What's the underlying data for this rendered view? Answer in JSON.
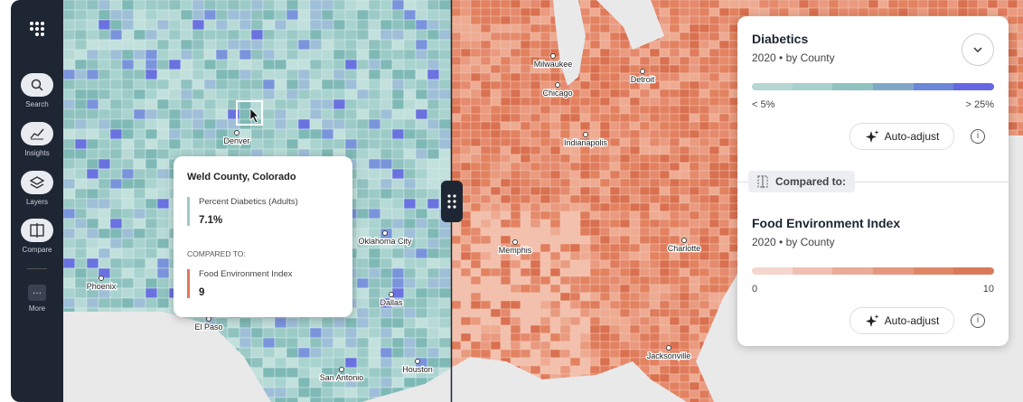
{
  "sidebar": {
    "items": [
      {
        "label": "Search"
      },
      {
        "label": "Insights"
      },
      {
        "label": "Layers"
      },
      {
        "label": "Compare"
      },
      {
        "label": "More"
      }
    ]
  },
  "map": {
    "cities": [
      {
        "name": "Denver"
      },
      {
        "name": "Phoenix"
      },
      {
        "name": "El Paso"
      },
      {
        "name": "Oklahoma City"
      },
      {
        "name": "Dallas"
      },
      {
        "name": "San Antonio"
      },
      {
        "name": "Houston"
      },
      {
        "name": "Milwaukee"
      },
      {
        "name": "Chicago"
      },
      {
        "name": "Detroit"
      },
      {
        "name": "Indianapolis"
      },
      {
        "name": "Memphis"
      },
      {
        "name": "Charlotte"
      },
      {
        "name": "Jacksonville"
      }
    ]
  },
  "tooltip": {
    "title": "Weld County, Colorado",
    "metric_1": {
      "label": "Percent Diabetics (Adults)",
      "value": "7.1%"
    },
    "compared_label": "COMPARED TO:",
    "metric_2": {
      "label": "Food Environment Index",
      "value": 9
    }
  },
  "panel": {
    "primary": {
      "title": "Diabetics",
      "subtitle": "2020 • by County",
      "legend_min": "< 5%",
      "legend_max": "> 25%",
      "button": "Auto-adjust"
    },
    "compared_label": "Compared to:",
    "secondary": {
      "title": "Food Environment Index",
      "subtitle": "2020 • by County",
      "legend_min": 0,
      "legend_max": 10,
      "button": "Auto-adjust"
    }
  }
}
